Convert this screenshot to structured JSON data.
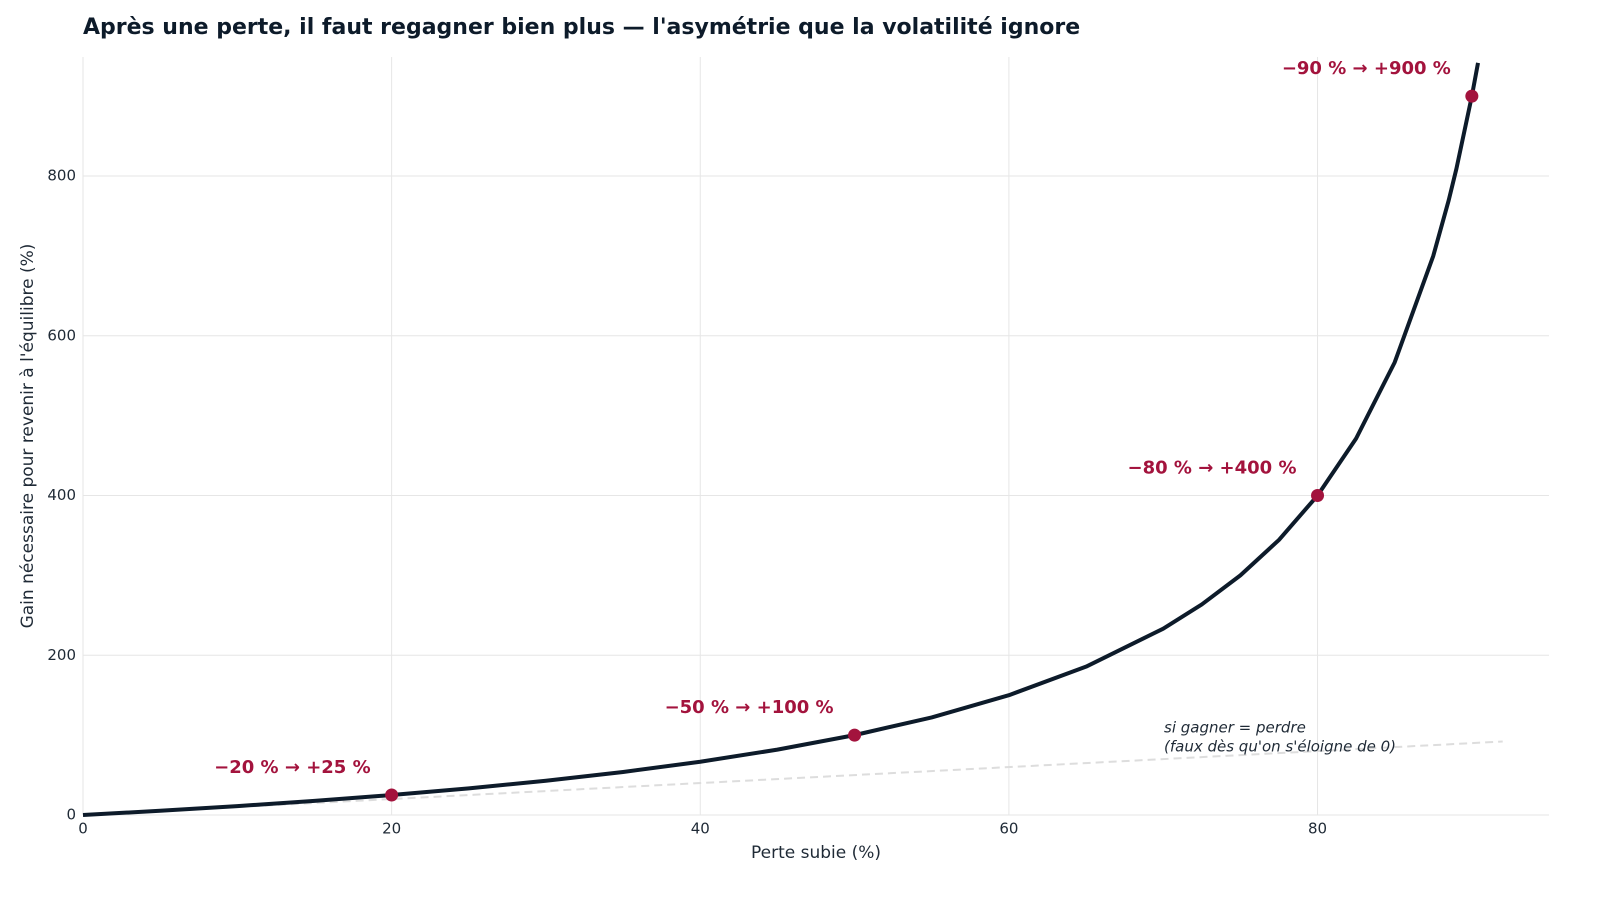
{
  "chart_data": {
    "type": "line",
    "title": "Après une perte, il faut regagner bien plus — l'asymétrie que la volatilité ignore",
    "x_label": "Perte subie (%)",
    "y_label": "Gain nécessaire pour revenir à l'équilibre (%)",
    "x": [
      0,
      5,
      10,
      15,
      20,
      25,
      30,
      35,
      40,
      45,
      50,
      55,
      60,
      65,
      70,
      72.5,
      75,
      77.5,
      80,
      82.5,
      85,
      87.5,
      88.5,
      89,
      90,
      90.4
    ],
    "values": [
      0,
      5.26,
      11.11,
      17.65,
      25,
      33.33,
      42.86,
      53.85,
      66.67,
      81.82,
      100,
      122.2,
      150,
      185.7,
      233.3,
      263.6,
      300,
      344.4,
      400,
      471.4,
      566.7,
      700,
      769.6,
      809.1,
      900,
      941.7
    ],
    "color": "#0d1b2a",
    "reference_line": {
      "x": [
        0,
        92
      ],
      "values": [
        0,
        92
      ],
      "color": "#dddddd",
      "dashed": true
    },
    "highlights": {
      "color": "#a3133d",
      "x": [
        20,
        50,
        80,
        90
      ],
      "values": [
        25,
        100,
        400,
        900
      ],
      "labels": [
        "−20 % → +25 %",
        "−50 % → +100 %",
        "−80 % → +400 %",
        "−90 % → +900 %"
      ]
    },
    "annotation": [
      "si gagner = perdre",
      "(faux dès qu'on s'éloigne de 0)"
    ],
    "xlim": [
      0,
      95
    ],
    "ylim": [
      0,
      949
    ],
    "xticks": [
      0,
      20,
      40,
      60,
      80
    ],
    "yticks": [
      0,
      200,
      400,
      600,
      800
    ],
    "grid": true
  }
}
